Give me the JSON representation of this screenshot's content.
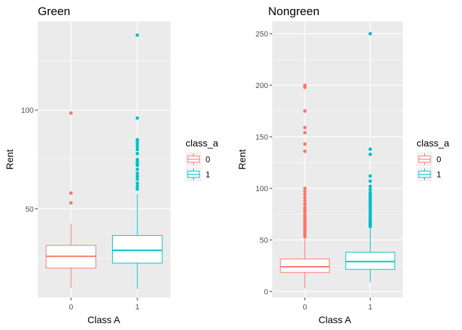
{
  "colors": {
    "class_0": "#F8766D",
    "class_1": "#00BFC4",
    "panel": "#EBEBEB",
    "grid": "#FFFFFF"
  },
  "chart_data": [
    {
      "type": "box",
      "title": "Green",
      "xlabel": "Class A",
      "ylabel": "Rent",
      "categories": [
        "0",
        "1"
      ],
      "ylim": [
        5,
        145
      ],
      "yticks": [
        50,
        100
      ],
      "yticks_minor": [
        25,
        75,
        125
      ],
      "legend": {
        "title": "class_a",
        "entries": [
          "0",
          "1"
        ],
        "position": "right"
      },
      "boxes": [
        {
          "category": "0",
          "whisker_low": 10,
          "q1": 20,
          "median": 26,
          "q3": 31.5,
          "whisker_high": 42.5,
          "outliers": [
            53,
            58,
            98.5
          ]
        },
        {
          "category": "1",
          "whisker_low": 9.5,
          "q1": 22.5,
          "median": 29,
          "q3": 36.5,
          "whisker_high": 57.5,
          "outliers": [
            60,
            61.5,
            63,
            65,
            66.5,
            68,
            70,
            72,
            73,
            74,
            75,
            78,
            80,
            81.5,
            83,
            84.5,
            85,
            96,
            138
          ]
        }
      ]
    },
    {
      "type": "box",
      "title": "Nongreen",
      "xlabel": "Class A",
      "ylabel": "Rent",
      "categories": [
        "0",
        "1"
      ],
      "ylim": [
        -6,
        262
      ],
      "yticks": [
        0,
        50,
        100,
        150,
        200,
        250
      ],
      "yticks_minor": [
        25,
        75,
        125,
        175,
        225
      ],
      "legend": {
        "title": "class_a",
        "entries": [
          "0",
          "1"
        ],
        "position": "right"
      },
      "boxes": [
        {
          "category": "0",
          "whisker_low": 3,
          "q1": 18.5,
          "median": 24,
          "q3": 31.5,
          "whisker_high": 51,
          "outliers": [
            53,
            55,
            57,
            59,
            61,
            63,
            65,
            67,
            69,
            71,
            73,
            75,
            78,
            80,
            82,
            85,
            88,
            91,
            94,
            97,
            100,
            136,
            143,
            154,
            159,
            175,
            198,
            200
          ]
        },
        {
          "category": "1",
          "whisker_low": 9,
          "q1": 21.5,
          "median": 29,
          "q3": 38,
          "whisker_high": 62,
          "outliers": [
            63,
            64.5,
            66,
            67.5,
            69,
            70.5,
            72,
            74,
            76,
            78,
            80,
            82,
            84,
            86,
            88,
            90,
            92,
            94,
            96,
            99,
            102,
            107,
            112,
            133,
            138,
            250
          ]
        }
      ]
    }
  ]
}
